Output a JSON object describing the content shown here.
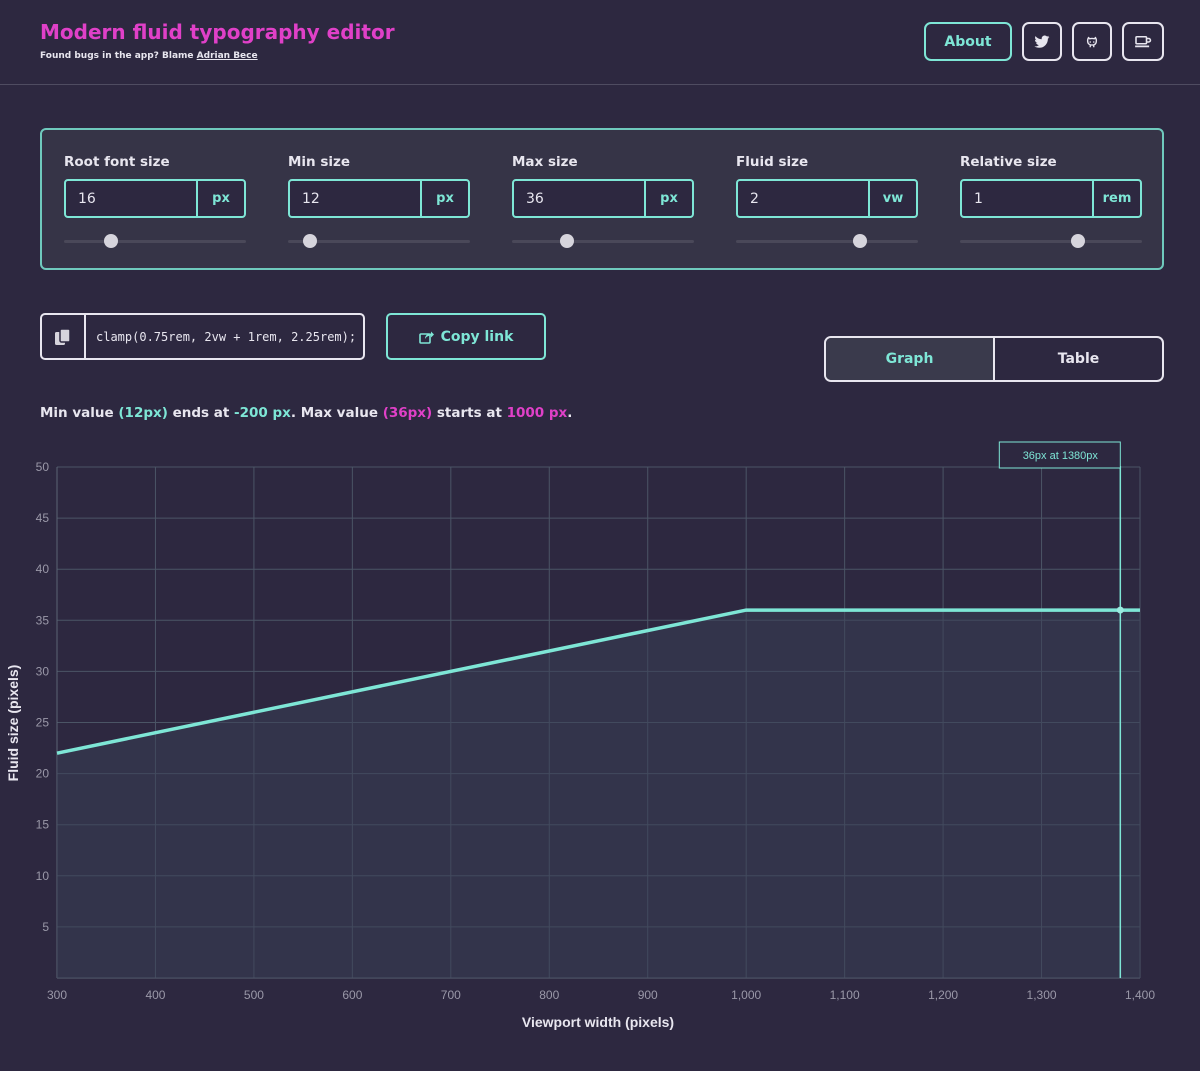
{
  "header": {
    "title": "Modern fluid typography editor",
    "subtitle_prefix": "Found bugs in the app? Blame ",
    "author_link": "Adrian Bece",
    "about_label": "About",
    "icons": [
      "twitter-icon",
      "github-icon",
      "coffee-icon"
    ]
  },
  "settings": [
    {
      "label": "Root font size",
      "value": "16",
      "unit": "px",
      "slider": 0.26
    },
    {
      "label": "Min size",
      "value": "12",
      "unit": "px",
      "slider": 0.12
    },
    {
      "label": "Max size",
      "value": "36",
      "unit": "px",
      "slider": 0.3
    },
    {
      "label": "Fluid size",
      "value": "2",
      "unit": "vw",
      "slider": 0.68
    },
    {
      "label": "Relative size",
      "value": "1",
      "unit": "rem",
      "slider": 0.65
    }
  ],
  "output": {
    "clamp": "clamp(0.75rem, 2vw + 1rem, 2.25rem);",
    "copy_label": "Copy link"
  },
  "view_toggle": {
    "graph_label": "Graph",
    "table_label": "Table",
    "active": "graph"
  },
  "summary": {
    "t1": "Min value ",
    "min_val": "(12px)",
    "t2": " ends at ",
    "min_end": "-200 px",
    "t3": ". Max value ",
    "max_val": "(36px)",
    "t4": " starts at ",
    "max_start": "1000 px",
    "t5": "."
  },
  "colors": {
    "accent": "#7ee6d6",
    "pink": "#e040c8",
    "background": "#2d2840"
  },
  "chart_data": {
    "type": "line",
    "xlabel": "Viewport width (pixels)",
    "ylabel": "Fluid size (pixels)",
    "xlim": [
      300,
      1400
    ],
    "ylim": [
      0,
      50
    ],
    "x_ticks": [
      300,
      400,
      500,
      600,
      700,
      800,
      900,
      1000,
      1100,
      1200,
      1300,
      1400
    ],
    "x_tick_labels": [
      "300",
      "400",
      "500",
      "600",
      "700",
      "800",
      "900",
      "1,000",
      "1,100",
      "1,200",
      "1,300",
      "1,400"
    ],
    "y_ticks": [
      5,
      10,
      15,
      20,
      25,
      30,
      35,
      40,
      45,
      50
    ],
    "grid": true,
    "series": [
      {
        "name": "Fluid size",
        "x": [
          300,
          1000,
          1400
        ],
        "y": [
          22,
          36,
          36
        ]
      }
    ],
    "cursor": {
      "x": 1380,
      "y": 36,
      "label": "36px at 1380px"
    }
  }
}
